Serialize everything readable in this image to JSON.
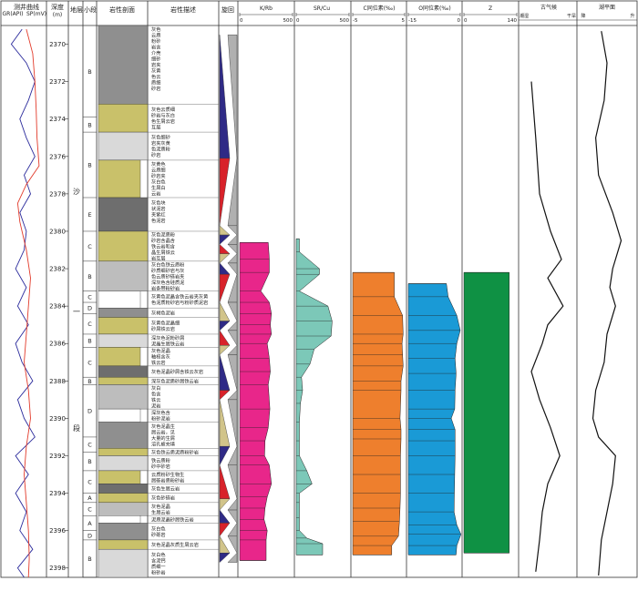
{
  "columns": {
    "log": "测井曲线",
    "gr": "GR(API)",
    "sp": "SP(mV)",
    "depth": "深度",
    "depth_unit": "(m)",
    "formation": "地层",
    "subsection": "小段",
    "lithology": "岩性剖面",
    "description": "岩性描述",
    "cycle": "旋回",
    "krb": "K/Rb",
    "srcu": "SR/Cu",
    "c13": "C同位素(‰)",
    "o18": "O同位素(‰)",
    "z": "Z",
    "paleoclimate": "古气候",
    "climate_dry": "潮湿",
    "climate_wet": "干旱",
    "lakelevel": "湖平面",
    "lake_down": "降",
    "lake_up": "升"
  },
  "formation_label_1": "沙",
  "formation_label_2": "一",
  "formation_label_3": "段",
  "colors": {
    "krb": "#e8268a",
    "srcu": "#7cc8b8",
    "c13": "#ee7f2d",
    "o18": "#1a9ad6",
    "z": "#0f9144",
    "gr": "#2b2b9c",
    "sp": "#e23b2b",
    "shale": "#8f8f8f",
    "dolomite": "#c9c16a"
  },
  "chart_data": {
    "type": "line",
    "title": "",
    "depth_range": [
      2369,
      2398.5
    ],
    "depth_ticks": [
      2370,
      2372,
      2374,
      2376,
      2378,
      2380,
      2382,
      2384,
      2386,
      2388,
      2390,
      2392,
      2394,
      2396,
      2398
    ],
    "subsections": [
      {
        "label": "B",
        "top": 2369,
        "bottom": 2373.9
      },
      {
        "label": "B",
        "top": 2373.9,
        "bottom": 2374.7
      },
      {
        "label": "B",
        "top": 2374.7,
        "bottom": 2378.2
      },
      {
        "label": "E",
        "top": 2378.2,
        "bottom": 2380
      },
      {
        "label": "C",
        "top": 2380,
        "bottom": 2381.6
      },
      {
        "label": "B",
        "top": 2381.6,
        "bottom": 2383.2
      },
      {
        "label": "C",
        "top": 2383.2,
        "bottom": 2383.8
      },
      {
        "label": "D",
        "top": 2383.8,
        "bottom": 2384.4
      },
      {
        "label": "C",
        "top": 2384.4,
        "bottom": 2385.5
      },
      {
        "label": "B",
        "top": 2385.5,
        "bottom": 2386.2
      },
      {
        "label": "C",
        "top": 2386.2,
        "bottom": 2387.8
      },
      {
        "label": "B",
        "top": 2387.8,
        "bottom": 2388.2
      },
      {
        "label": "D",
        "top": 2388.2,
        "bottom": 2391
      },
      {
        "label": "C",
        "top": 2391,
        "bottom": 2391.8
      },
      {
        "label": "B",
        "top": 2391.8,
        "bottom": 2392.8
      },
      {
        "label": "C",
        "top": 2392.8,
        "bottom": 2394
      },
      {
        "label": "A",
        "top": 2394,
        "bottom": 2394.5
      },
      {
        "label": "C",
        "top": 2394.5,
        "bottom": 2395.2
      },
      {
        "label": "A",
        "top": 2395.2,
        "bottom": 2396
      },
      {
        "label": "D",
        "top": 2396,
        "bottom": 2396.5
      },
      {
        "label": "B",
        "top": 2396.5,
        "bottom": 2398.5
      }
    ],
    "descriptions": [
      {
        "text": "灰色云质粉砂岩含介壳细砂岩夹灰黄色云质细砂岩",
        "top": 2369,
        "bottom": 2373.2
      },
      {
        "text": "灰色云质细砂岩与灰白色生屑云岩互层",
        "top": 2373.2,
        "bottom": 2374.7
      },
      {
        "text": "灰色细砂岩夹灰黄色泥质粉砂岩",
        "top": 2374.7,
        "bottom": 2376.2
      },
      {
        "text": "灰黄色云质细砂岩夹灰白色生屑白云岩",
        "top": 2376.2,
        "bottom": 2378.2
      },
      {
        "text": "灰色块状泥岩夹紫红色泥岩",
        "top": 2378.2,
        "bottom": 2380
      },
      {
        "text": "灰色泥质粉砂岩含晶含铁云岩和含晶生屑铁云岩互层",
        "top": 2380,
        "bottom": 2381.6
      },
      {
        "text": "灰白色铁云质粉砂质细砂岩与灰色云质砂砾岩夹深灰色含硅质泥岩条带粉砂岩",
        "top": 2381.6,
        "bottom": 2383.2
      },
      {
        "text": "灰黄色泥晶含铁云岩夹灰黄色泥质粉砂岩与粉砂质泥岩",
        "top": 2383.2,
        "bottom": 2384.1
      },
      {
        "text": "灰褐色泥岩",
        "top": 2384.1,
        "bottom": 2384.6
      },
      {
        "text": "灰黄色泥晶细砂屑铁云岩",
        "top": 2384.6,
        "bottom": 2385.5
      },
      {
        "text": "深灰色泥粉砂屑泥晶生屑铁云岩",
        "top": 2385.5,
        "bottom": 2386.2
      },
      {
        "text": "灰色泥晶釉核含灰铁云岩",
        "top": 2386.2,
        "bottom": 2387.2
      },
      {
        "text": "灰色泥晶砂屑含铁云灰岩",
        "top": 2387.2,
        "bottom": 2387.8
      },
      {
        "text": "深灰色泥质砂屑铁云岩",
        "top": 2387.8,
        "bottom": 2388.2
      },
      {
        "text": "灰白色含铁云泥岩",
        "top": 2388.2,
        "bottom": 2389.5
      },
      {
        "text": "深灰色含粉砂泥岩",
        "top": 2389.5,
        "bottom": 2390.2
      },
      {
        "text": "灰色泥晶生屑云岩，见大量的生屑溶孔被充填",
        "top": 2390.2,
        "bottom": 2391.6
      },
      {
        "text": "灰色铁云质泥质粉砂岩",
        "top": 2391.6,
        "bottom": 2392
      },
      {
        "text": "铁云质粉砂中砂岩",
        "top": 2392,
        "bottom": 2392.8
      },
      {
        "text": "云质粉砂生物生屑砾岩质粉砂岩",
        "top": 2392.8,
        "bottom": 2393.5
      },
      {
        "text": "灰色生屑云岩",
        "top": 2393.5,
        "bottom": 2394
      },
      {
        "text": "灰色砂砾岩",
        "top": 2394,
        "bottom": 2394.5
      },
      {
        "text": "灰色泥晶生屑云岩",
        "top": 2394.5,
        "bottom": 2395.2
      },
      {
        "text": "泥质泥晶砂屑铁云岩",
        "top": 2395.2,
        "bottom": 2395.6
      },
      {
        "text": "灰白色砂砾岩",
        "top": 2395.6,
        "bottom": 2396.5
      },
      {
        "text": "灰色泥晶灰质生屑云岩",
        "top": 2396.5,
        "bottom": 2397
      },
      {
        "text": "灰白色含泥钙质细一粉砂岩",
        "top": 2397,
        "bottom": 2398.5
      }
    ],
    "series": [
      {
        "name": "K/Rb",
        "xlim": [
          0,
          500
        ],
        "ticks": [
          "0",
          "500"
        ],
        "depth": [
          2380.6,
          2380.6,
          2381.5,
          2382.2,
          2383.2,
          2383.8,
          2384.4,
          2385,
          2385.5,
          2386,
          2386.8,
          2387.5,
          2388.2,
          2389.5,
          2390.5,
          2391.2,
          2392,
          2392.5,
          2393.5,
          2394.2,
          2394.8,
          2395.4,
          2396,
          2396.5,
          2397.6,
          2397.6
        ],
        "values": [
          0,
          270,
          280,
          280,
          200,
          280,
          300,
          290,
          300,
          260,
          280,
          290,
          270,
          285,
          270,
          240,
          235,
          280,
          300,
          260,
          240,
          230,
          260,
          250,
          250,
          0
        ]
      },
      {
        "name": "SR/Cu",
        "xlim": [
          0,
          500
        ],
        "ticks": [
          "0",
          "500"
        ],
        "depth": [
          2380.4,
          2380.4,
          2381.1,
          2382,
          2382.3,
          2383.2,
          2384,
          2384.8,
          2385.6,
          2386.3,
          2387.1,
          2387.8,
          2388.5,
          2389.2,
          2390.2,
          2391.2,
          2392,
          2392.8,
          2393.5,
          2394,
          2394.5,
          2395.3,
          2396,
          2396.4,
          2396.7,
          2397.3,
          2397.3
        ],
        "values": [
          0,
          30,
          30,
          220,
          220,
          30,
          300,
          340,
          330,
          170,
          130,
          50,
          60,
          40,
          30,
          30,
          30,
          100,
          150,
          30,
          30,
          30,
          30,
          100,
          250,
          250,
          0
        ]
      },
      {
        "name": "C同位素(‰)",
        "xlim": [
          -5,
          5
        ],
        "ticks": [
          "-5",
          "5"
        ],
        "depth": [
          2382.2,
          2382.2,
          2383.5,
          2384.5,
          2385.5,
          2386,
          2386.6,
          2387.2,
          2388,
          2388.5,
          2390,
          2390.6,
          2391.1,
          2392,
          2393,
          2394,
          2394.8,
          2395.5,
          2396.3,
          2396.8,
          2397.3,
          2397.3
        ],
        "values": [
          -5,
          3,
          3,
          4.6,
          4.7,
          4.5,
          4.6,
          4.7,
          4.3,
          4.3,
          4.1,
          4.3,
          4.3,
          4.2,
          4.2,
          4.2,
          4.1,
          4,
          3.8,
          2.5,
          2.5,
          -5
        ]
      },
      {
        "name": "O同位素(‰)",
        "xlim": [
          -15,
          0
        ],
        "ticks": [
          "-15",
          "0"
        ],
        "depth": [
          2382.8,
          2382.8,
          2383.5,
          2384.5,
          2385.3,
          2386,
          2386.8,
          2387.6,
          2388.5,
          2389.5,
          2390,
          2390.6,
          2391.2,
          2392,
          2393,
          2394,
          2395,
          2395.7,
          2396.2,
          2396.8,
          2397.3,
          2397.3
        ],
        "values": [
          -15,
          -4,
          -3.5,
          -1,
          0,
          -1,
          -1.5,
          -1.2,
          -1.5,
          -1.6,
          -2.6,
          -1.5,
          -1.5,
          -1.5,
          -1.6,
          -1.7,
          -1.8,
          -1,
          0.2,
          -1,
          -1.2,
          -15
        ]
      },
      {
        "name": "Z",
        "xlim": [
          0,
          140
        ],
        "ticks": [
          "0",
          "140"
        ],
        "depth": [
          2382.2,
          2382.2,
          2397.2,
          2397.2
        ],
        "values": [
          0,
          120,
          120,
          0
        ]
      }
    ],
    "climate_curve": {
      "depth": [
        2372,
        2375,
        2378,
        2380,
        2381.5,
        2382.5,
        2384,
        2385,
        2386,
        2387.5,
        2389,
        2390.5,
        2392,
        2393.5,
        2395,
        2396.5,
        2398.2
      ],
      "values": [
        0.2,
        0.28,
        0.35,
        0.55,
        0.75,
        0.5,
        0.78,
        0.5,
        0.4,
        0.2,
        0.35,
        0.55,
        0.72,
        0.5,
        0.4,
        0.35,
        0.28
      ]
    },
    "lake_curve": {
      "depth": [
        2369.3,
        2371,
        2373,
        2375,
        2377,
        2379,
        2380.5,
        2382,
        2383,
        2384,
        2385.5,
        2387,
        2388.5,
        2390,
        2391,
        2392,
        2393.5,
        2395,
        2396.5,
        2398.4
      ],
      "values": [
        0.4,
        0.5,
        0.45,
        0.3,
        0.35,
        0.6,
        0.75,
        0.6,
        0.55,
        0.65,
        0.5,
        0.45,
        0.3,
        0.25,
        0.35,
        0.65,
        0.6,
        0.5,
        0.4,
        0.35
      ]
    },
    "gr_curve": {
      "depth": [
        2369.2,
        2370,
        2371,
        2372,
        2373,
        2374,
        2375,
        2376,
        2377,
        2378,
        2379,
        2380,
        2381,
        2382,
        2383,
        2384,
        2385,
        2386,
        2387,
        2388,
        2389,
        2390,
        2391,
        2392,
        2393,
        2394,
        2395,
        2396,
        2397,
        2398,
        2398.5
      ],
      "values": [
        0.45,
        0.2,
        0.55,
        0.75,
        0.6,
        0.4,
        0.55,
        0.75,
        0.5,
        0.65,
        0.4,
        0.55,
        0.5,
        0.3,
        0.55,
        0.35,
        0.6,
        0.3,
        0.45,
        0.7,
        0.35,
        0.5,
        0.75,
        0.3,
        0.6,
        0.3,
        0.55,
        0.4,
        0.7,
        0.35,
        0.5
      ]
    },
    "sp_curve": {
      "depth": [
        2369.2,
        2370.5,
        2372,
        2373.5,
        2375,
        2376.5,
        2377.5,
        2378.5,
        2379.5,
        2381,
        2382.5,
        2384,
        2385.5,
        2387,
        2388.5,
        2390,
        2391.5,
        2393,
        2394.5,
        2396,
        2397.5,
        2398.5
      ],
      "values": [
        0.55,
        0.7,
        0.75,
        0.78,
        0.8,
        0.85,
        0.55,
        0.35,
        0.4,
        0.55,
        0.65,
        0.6,
        0.55,
        0.5,
        0.6,
        0.65,
        0.55,
        0.5,
        0.55,
        0.6,
        0.62,
        0.6
      ]
    },
    "cycle_boundaries": [
      2369.5,
      2376.1,
      2379.7,
      2380.2,
      2380.7,
      2381.2,
      2381.7,
      2382.3,
      2383.8,
      2384.8,
      2385.3,
      2386.1,
      2386.6,
      2388.5,
      2389,
      2391.5,
      2392.5,
      2394.3,
      2394.9,
      2395.6,
      2396.3,
      2397.2,
      2397.7
    ]
  }
}
